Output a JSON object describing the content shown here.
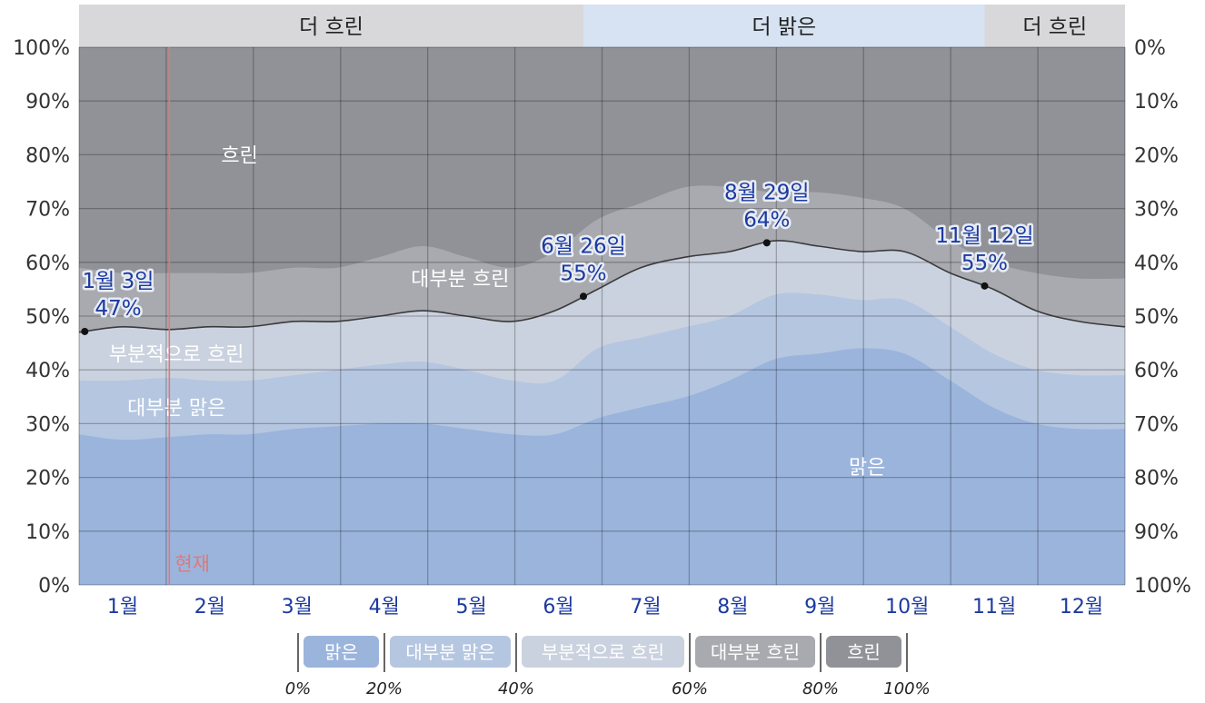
{
  "chart_data": {
    "type": "area",
    "stacked": true,
    "x_unit": "day of year",
    "x_domain": [
      0,
      365
    ],
    "months": [
      "1월",
      "2월",
      "3월",
      "4월",
      "5월",
      "6월",
      "7월",
      "8월",
      "9월",
      "10월",
      "11월",
      "12월"
    ],
    "y_left_ticks": [
      "0%",
      "10%",
      "20%",
      "30%",
      "40%",
      "50%",
      "60%",
      "70%",
      "80%",
      "90%",
      "100%"
    ],
    "y_right_ticks": [
      "100%",
      "90%",
      "80%",
      "70%",
      "60%",
      "50%",
      "40%",
      "30%",
      "20%",
      "10%",
      "0%"
    ],
    "ylim": [
      0,
      100
    ],
    "grid": true,
    "top_bands": [
      {
        "label": "더 흐린",
        "start_day": 0,
        "end_day": 176,
        "color": "#d8d8da"
      },
      {
        "label": "더 밝은",
        "start_day": 176,
        "end_day": 316,
        "color": "#d7e2f2"
      },
      {
        "label": "더 흐린",
        "start_day": 316,
        "end_day": 365,
        "color": "#d8d8da"
      }
    ],
    "categories": [
      {
        "name": "맑은",
        "color": "#9bb4dc"
      },
      {
        "name": "대부분 맑은",
        "color": "#b5c6e0"
      },
      {
        "name": "부분적으로 흐린",
        "color": "#cbd2df"
      },
      {
        "name": "대부분 흐린",
        "color": "#a8aab0"
      },
      {
        "name": "흐린",
        "color": "#909298"
      }
    ],
    "x": [
      0,
      15,
      31,
      45,
      59,
      75,
      90,
      105,
      120,
      135,
      151,
      166,
      181,
      196,
      212,
      227,
      243,
      258,
      273,
      288,
      304,
      319,
      334,
      349,
      365
    ],
    "series": [
      {
        "name": "맑은",
        "values": [
          28,
          27,
          27.5,
          28,
          28,
          29,
          29.5,
          30,
          30,
          29,
          28,
          28,
          31,
          33,
          35,
          38,
          42,
          43,
          44,
          43,
          38,
          33,
          30,
          29,
          29
        ]
      },
      {
        "name": "대부분 맑은",
        "values": [
          38,
          38,
          38.5,
          38,
          38,
          39,
          40,
          41,
          41.5,
          40,
          38,
          38,
          44,
          46,
          48,
          50,
          54,
          54,
          53,
          53,
          48,
          43,
          40,
          39,
          39
        ]
      },
      {
        "name": "부분적으로 흐린",
        "values": [
          47,
          48,
          47.5,
          48,
          48,
          49,
          49,
          50,
          51,
          50,
          49,
          51,
          55,
          59,
          61,
          62,
          64,
          63,
          62,
          62,
          58,
          55,
          51,
          49,
          48
        ]
      },
      {
        "name": "대부분 흐린",
        "values": [
          59,
          58,
          58,
          58,
          58,
          59,
          59,
          61,
          63,
          61,
          59,
          62,
          68,
          71,
          74,
          74,
          73,
          73,
          72,
          70,
          64,
          60,
          58,
          57,
          57
        ]
      }
    ],
    "annotations": [
      {
        "date": "1월 3일",
        "value": "47%",
        "day": 2,
        "y": 47
      },
      {
        "date": "6월 26일",
        "value": "55%",
        "day": 176,
        "y": 55
      },
      {
        "date": "8월 29일",
        "value": "64%",
        "day": 240,
        "y": 64
      },
      {
        "date": "11월 12일",
        "value": "55%",
        "day": 316,
        "y": 55
      }
    ],
    "region_labels": [
      {
        "text": "흐린",
        "day": 56,
        "y": 80
      },
      {
        "text": "대부분 흐린",
        "day": 133,
        "y": 57
      },
      {
        "text": "부분적으로 흐린",
        "day": 34,
        "y": 43
      },
      {
        "text": "대부분 맑은",
        "day": 34,
        "y": 33
      },
      {
        "text": "맑은",
        "day": 275,
        "y": 22
      }
    ],
    "now_marker": {
      "label": "현재",
      "day": 31.5,
      "color": "#e07878"
    },
    "legend": {
      "items": [
        "맑은",
        "대부분 맑은",
        "부분적으로 흐린",
        "대부분 흐린",
        "흐린"
      ],
      "scale_ticks": [
        "0%",
        "20%",
        "40%",
        "60%",
        "80%",
        "100%"
      ]
    }
  }
}
